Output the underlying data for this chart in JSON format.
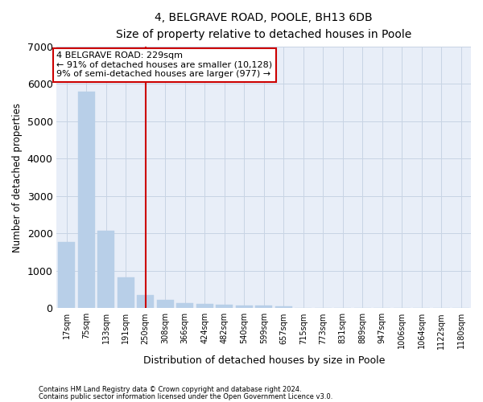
{
  "title": "4, BELGRAVE ROAD, POOLE, BH13 6DB",
  "subtitle": "Size of property relative to detached houses in Poole",
  "xlabel": "Distribution of detached houses by size in Poole",
  "ylabel": "Number of detached properties",
  "footnote1": "Contains HM Land Registry data © Crown copyright and database right 2024.",
  "footnote2": "Contains public sector information licensed under the Open Government Licence v3.0.",
  "annotation_line1": "4 BELGRAVE ROAD: 229sqm",
  "annotation_line2": "← 91% of detached houses are smaller (10,128)",
  "annotation_line3": "9% of semi-detached houses are larger (977) →",
  "bar_labels": [
    "17sqm",
    "75sqm",
    "133sqm",
    "191sqm",
    "250sqm",
    "308sqm",
    "366sqm",
    "424sqm",
    "482sqm",
    "540sqm",
    "599sqm",
    "657sqm",
    "715sqm",
    "773sqm",
    "831sqm",
    "889sqm",
    "947sqm",
    "1006sqm",
    "1064sqm",
    "1122sqm",
    "1180sqm"
  ],
  "bar_values": [
    1780,
    5780,
    2060,
    830,
    340,
    220,
    130,
    110,
    95,
    80,
    70,
    60,
    0,
    0,
    0,
    0,
    0,
    0,
    0,
    0,
    0
  ],
  "bar_color": "#b8cfe8",
  "vline_color": "#cc0000",
  "vline_x": 4.0,
  "annotation_box_color": "#cc0000",
  "grid_color": "#c8d4e4",
  "background_color": "#e8eef8",
  "ylim": [
    0,
    7000
  ],
  "yticks": [
    0,
    1000,
    2000,
    3000,
    4000,
    5000,
    6000,
    7000
  ]
}
